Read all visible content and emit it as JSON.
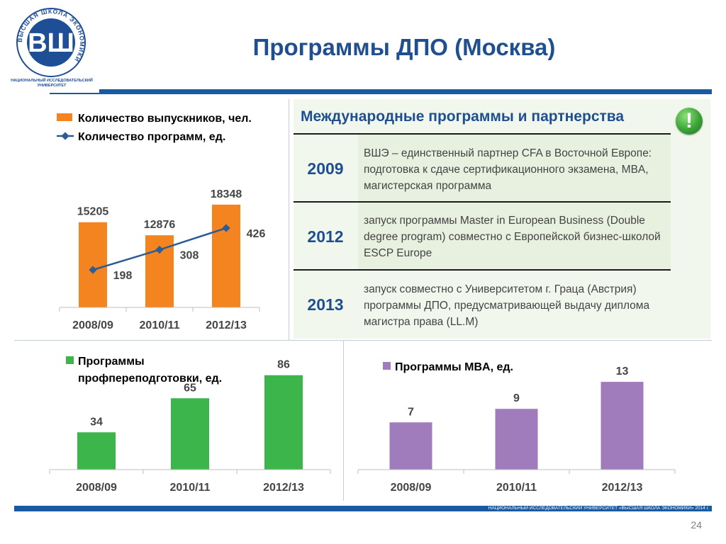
{
  "header": {
    "title": "Программы ДПО (Москва)",
    "logo_caption": "НАЦИОНАЛЬНЫЙ ИССЛЕДОВАТЕЛЬСКИЙ\nУНИВЕРСИТЕТ",
    "logo_ring_text": "ВЫСШАЯ ШКОЛА ЭКОНОМИКИ",
    "logo_mark": "ВШ"
  },
  "colors": {
    "brand_blue": "#1a5aa0",
    "orange": "#f4841f",
    "green": "#3cb54a",
    "purple": "#a07cbc",
    "line_blue": "#2e5d96"
  },
  "international": {
    "header": "Международные программы и партнерства",
    "icon": "exclamation-icon",
    "rows": [
      {
        "year": "2009",
        "text": "ВШЭ – единственный  партнер CFA в Восточной Европе: подготовка к сдаче сертификационного экзамена, MBA, магистерская программа"
      },
      {
        "year": "2012",
        "text": "запуск программы Master in European Business (Double degree program) совместно с  Европейской бизнес-школой ESCP Europe"
      },
      {
        "year": "2013",
        "text": "запуск совместно с Университетом г. Граца (Австрия) программы ДПО, предусматривающей выдачу диплома магистра права (LL.M)"
      }
    ]
  },
  "chart_data": [
    {
      "type": "bar",
      "categories": [
        "2008/09",
        "2010/11",
        "2012/13"
      ],
      "series": [
        {
          "name": "Количество выпускников, чел.",
          "type": "bar",
          "values": [
            15205,
            12876,
            18348
          ]
        },
        {
          "name": "Количество программ, ед.",
          "type": "line",
          "values": [
            198,
            308,
            426
          ]
        }
      ],
      "legend_position": "top-left",
      "ylim": [
        0,
        22000
      ]
    },
    {
      "type": "bar",
      "categories": [
        "2008/09",
        "2010/11",
        "2012/13"
      ],
      "series": [
        {
          "name": "Программы профпереподготовки, ед.",
          "values": [
            34,
            65,
            86
          ]
        }
      ],
      "legend_position": "top-left",
      "ylim": [
        0,
        100
      ]
    },
    {
      "type": "bar",
      "categories": [
        "2008/09",
        "2010/11",
        "2012/13"
      ],
      "series": [
        {
          "name": "Программы MBA, ед.",
          "values": [
            7,
            9,
            13
          ]
        }
      ],
      "legend_position": "top-left",
      "ylim": [
        0,
        15
      ]
    }
  ],
  "footer": {
    "text": "НАЦИОНАЛЬНЫЙ ИССЛЕДОВАТЕЛЬСКИЙ УНИВЕРСИТЕТ «ВЫСШАЯ ШКОЛА ЭКОНОМИКИ» 2014 г.",
    "page_number": "24"
  }
}
